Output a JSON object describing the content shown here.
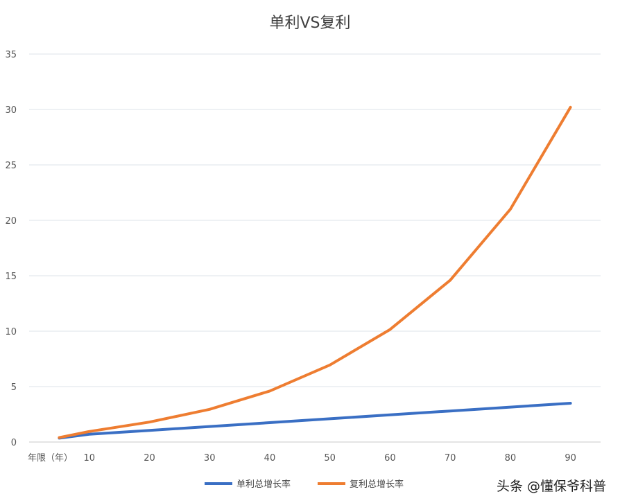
{
  "chart_data": {
    "type": "line",
    "title": "单利VS复利",
    "x": [
      5,
      10,
      20,
      30,
      40,
      50,
      60,
      70,
      80,
      90
    ],
    "x_axis_label": "年限（年）",
    "x_tick_labels": [
      "10",
      "20",
      "30",
      "40",
      "50",
      "60",
      "70",
      "80",
      "90"
    ],
    "ylim": [
      0,
      35
    ],
    "y_ticks": [
      0,
      5,
      10,
      15,
      20,
      25,
      30,
      35
    ],
    "grid": "horizontal",
    "legend_position": "bottom",
    "series": [
      {
        "name": "单利总增长率",
        "color": "#3a6fc4",
        "values": [
          0.35,
          0.7,
          1.05,
          1.4,
          1.75,
          2.1,
          2.45,
          2.8,
          3.15,
          3.5
        ]
      },
      {
        "name": "复利总增长率",
        "color": "#ee7d31",
        "values": [
          0.4,
          0.95,
          1.8,
          2.95,
          4.6,
          6.95,
          10.15,
          14.6,
          21.0,
          30.2
        ]
      }
    ]
  },
  "watermark": "头条 @懂保爷科普"
}
